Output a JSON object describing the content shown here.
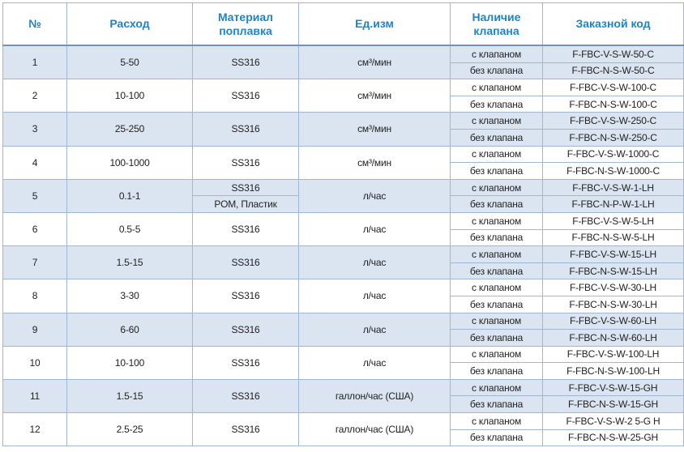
{
  "table": {
    "header": [
      "№",
      "Расход",
      "Материал поплавка",
      "Ед.изм",
      "Наличие клапана",
      "Заказной код"
    ],
    "rows": [
      {
        "no": "1",
        "flow": "5-50",
        "material": [
          "SS316"
        ],
        "unit": "см³/мин",
        "options": [
          {
            "valve": "с клапаном",
            "code": "F-FBC-V-S-W-50-C"
          },
          {
            "valve": "без клапана",
            "code": "F-FBC-N-S-W-50-C"
          }
        ]
      },
      {
        "no": "2",
        "flow": "10-100",
        "material": [
          "SS316"
        ],
        "unit": "см³/мин",
        "options": [
          {
            "valve": "с клапаном",
            "code": "F-FBC-V-S-W-100-C"
          },
          {
            "valve": "без клапана",
            "code": "F-FBC-N-S-W-100-C"
          }
        ]
      },
      {
        "no": "3",
        "flow": "25-250",
        "material": [
          "SS316"
        ],
        "unit": "см³/мин",
        "options": [
          {
            "valve": "с клапаном",
            "code": "F-FBC-V-S-W-250-C"
          },
          {
            "valve": "без клапана",
            "code": "F-FBC-N-S-W-250-C"
          }
        ]
      },
      {
        "no": "4",
        "flow": "100-1000",
        "material": [
          "SS316"
        ],
        "unit": "см³/мин",
        "options": [
          {
            "valve": "с клапаном",
            "code": "F-FBC-V-S-W-1000-C"
          },
          {
            "valve": "без клапана",
            "code": "F-FBC-N-S-W-1000-C"
          }
        ]
      },
      {
        "no": "5",
        "flow": "0.1-1",
        "material": [
          "SS316",
          "POM, Пластик"
        ],
        "unit": "л/час",
        "options": [
          {
            "valve": "с клапаном",
            "code": "F-FBC-V-S-W-1-LH"
          },
          {
            "valve": "без клапана",
            "code": "F-FBC-N-P-W-1-LH"
          }
        ]
      },
      {
        "no": "6",
        "flow": "0.5-5",
        "material": [
          "SS316"
        ],
        "unit": "л/час",
        "options": [
          {
            "valve": "с клапаном",
            "code": "F-FBC-V-S-W-5-LH"
          },
          {
            "valve": "без клапана",
            "code": "F-FBC-N-S-W-5-LH"
          }
        ]
      },
      {
        "no": "7",
        "flow": "1.5-15",
        "material": [
          "SS316"
        ],
        "unit": "л/час",
        "options": [
          {
            "valve": "с клапаном",
            "code": "F-FBC-V-S-W-15-LH"
          },
          {
            "valve": "без клапана",
            "code": "F-FBC-N-S-W-15-LH"
          }
        ]
      },
      {
        "no": "8",
        "flow": "3-30",
        "material": [
          "SS316"
        ],
        "unit": "л/час",
        "options": [
          {
            "valve": "с клапаном",
            "code": "F-FBC-V-S-W-30-LH"
          },
          {
            "valve": "без клапана",
            "code": "F-FBC-N-S-W-30-LH"
          }
        ]
      },
      {
        "no": "9",
        "flow": "6-60",
        "material": [
          "SS316"
        ],
        "unit": "л/час",
        "options": [
          {
            "valve": "с клапаном",
            "code": "F-FBC-V-S-W-60-LH"
          },
          {
            "valve": "без клапана",
            "code": "F-FBC-N-S-W-60-LH"
          }
        ]
      },
      {
        "no": "10",
        "flow": "10-100",
        "material": [
          "SS316"
        ],
        "unit": "л/час",
        "options": [
          {
            "valve": "с клапаном",
            "code": "F-FBC-V-S-W-100-LH"
          },
          {
            "valve": "без клапана",
            "code": "F-FBC-N-S-W-100-LH"
          }
        ]
      },
      {
        "no": "11",
        "flow": "1.5-15",
        "material": [
          "SS316"
        ],
        "unit": "галлон/час (США)",
        "options": [
          {
            "valve": "с клапаном",
            "code": "F-FBC-V-S-W-15-GH"
          },
          {
            "valve": "без клапана",
            "code": "F-FBC-N-S-W-15-GH"
          }
        ]
      },
      {
        "no": "12",
        "flow": "2.5-25",
        "material": [
          "SS316"
        ],
        "unit": "галлон/час (США)",
        "options": [
          {
            "valve": "с клапаном",
            "code": "F-FBC-V-S-W-2 5-G H"
          },
          {
            "valve": "без клапана",
            "code": "F-FBC-N-S-W-25-GH"
          }
        ]
      }
    ]
  }
}
